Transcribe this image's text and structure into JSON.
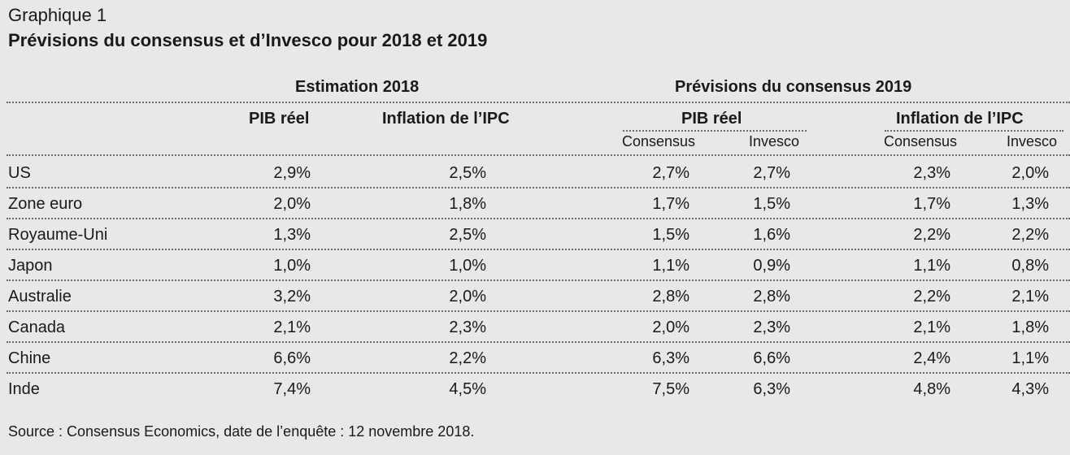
{
  "figure": {
    "label": "Graphique 1",
    "title": "Prévisions du consensus et d’Invesco pour 2018 et 2019"
  },
  "header": {
    "group_2018": "Estimation 2018",
    "group_2019": "Prévisions du consensus 2019",
    "pib_2018": "PIB réel",
    "ipc_2018": "Inflation de l’IPC",
    "pib_2019": "PIB réel",
    "ipc_2019": "Inflation de l’IPC",
    "pib_consensus": "Consensus",
    "pib_invesco": "Invesco",
    "ipc_consensus": "Consensus",
    "ipc_invesco": "Invesco"
  },
  "rows": [
    {
      "country": "US",
      "pib_2018": "2,9%",
      "ipc_2018": "2,5%",
      "pib_cons": "2,7%",
      "pib_inv": "2,7%",
      "ipc_cons": "2,3%",
      "ipc_inv": "2,0%"
    },
    {
      "country": "Zone euro",
      "pib_2018": "2,0%",
      "ipc_2018": "1,8%",
      "pib_cons": "1,7%",
      "pib_inv": "1,5%",
      "ipc_cons": "1,7%",
      "ipc_inv": "1,3%"
    },
    {
      "country": "Royaume-Uni",
      "pib_2018": "1,3%",
      "ipc_2018": "2,5%",
      "pib_cons": "1,5%",
      "pib_inv": "1,6%",
      "ipc_cons": "2,2%",
      "ipc_inv": "2,2%"
    },
    {
      "country": "Japon",
      "pib_2018": "1,0%",
      "ipc_2018": "1,0%",
      "pib_cons": "1,1%",
      "pib_inv": "0,9%",
      "ipc_cons": "1,1%",
      "ipc_inv": "0,8%"
    },
    {
      "country": "Australie",
      "pib_2018": "3,2%",
      "ipc_2018": "2,0%",
      "pib_cons": "2,8%",
      "pib_inv": "2,8%",
      "ipc_cons": "2,2%",
      "ipc_inv": "2,1%"
    },
    {
      "country": "Canada",
      "pib_2018": "2,1%",
      "ipc_2018": "2,3%",
      "pib_cons": "2,0%",
      "pib_inv": "2,3%",
      "ipc_cons": "2,1%",
      "ipc_inv": "1,8%"
    },
    {
      "country": "Chine",
      "pib_2018": "6,6%",
      "ipc_2018": "2,2%",
      "pib_cons": "6,3%",
      "pib_inv": "6,6%",
      "ipc_cons": "2,4%",
      "ipc_inv": "1,1%"
    },
    {
      "country": "Inde",
      "pib_2018": "7,4%",
      "ipc_2018": "4,5%",
      "pib_cons": "7,5%",
      "pib_inv": "6,3%",
      "ipc_cons": "4,8%",
      "ipc_inv": "4,3%"
    }
  ],
  "source": "Source : Consensus Economics, date de l’enquête : 12 novembre 2018."
}
